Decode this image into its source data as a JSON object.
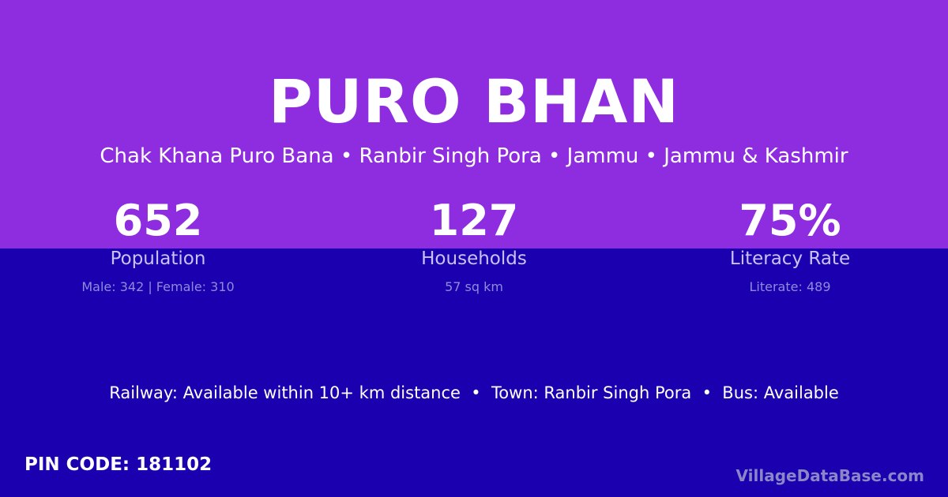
{
  "title": "PURO BHAN",
  "subtitle": "Chak Khana Puro Bana • Ranbir Singh Pora • Jammu • Jammu & Kashmir",
  "stats": [
    {
      "value": "652",
      "label": "Population",
      "detail": "Male: 342 | Female: 310"
    },
    {
      "value": "127",
      "label": "Households",
      "detail": "57 sq km"
    },
    {
      "value": "75%",
      "label": "Literacy Rate",
      "detail": "Literate: 489"
    }
  ],
  "info": "Railway: Available within 10+ km distance  •  Town: Ranbir Singh Pora  •  Bus: Available",
  "pin": "PIN CODE: 181102",
  "brand": "VillageDataBase.com",
  "colors": {
    "top": "#8e2ce0",
    "bottom": "#1a00ae"
  }
}
